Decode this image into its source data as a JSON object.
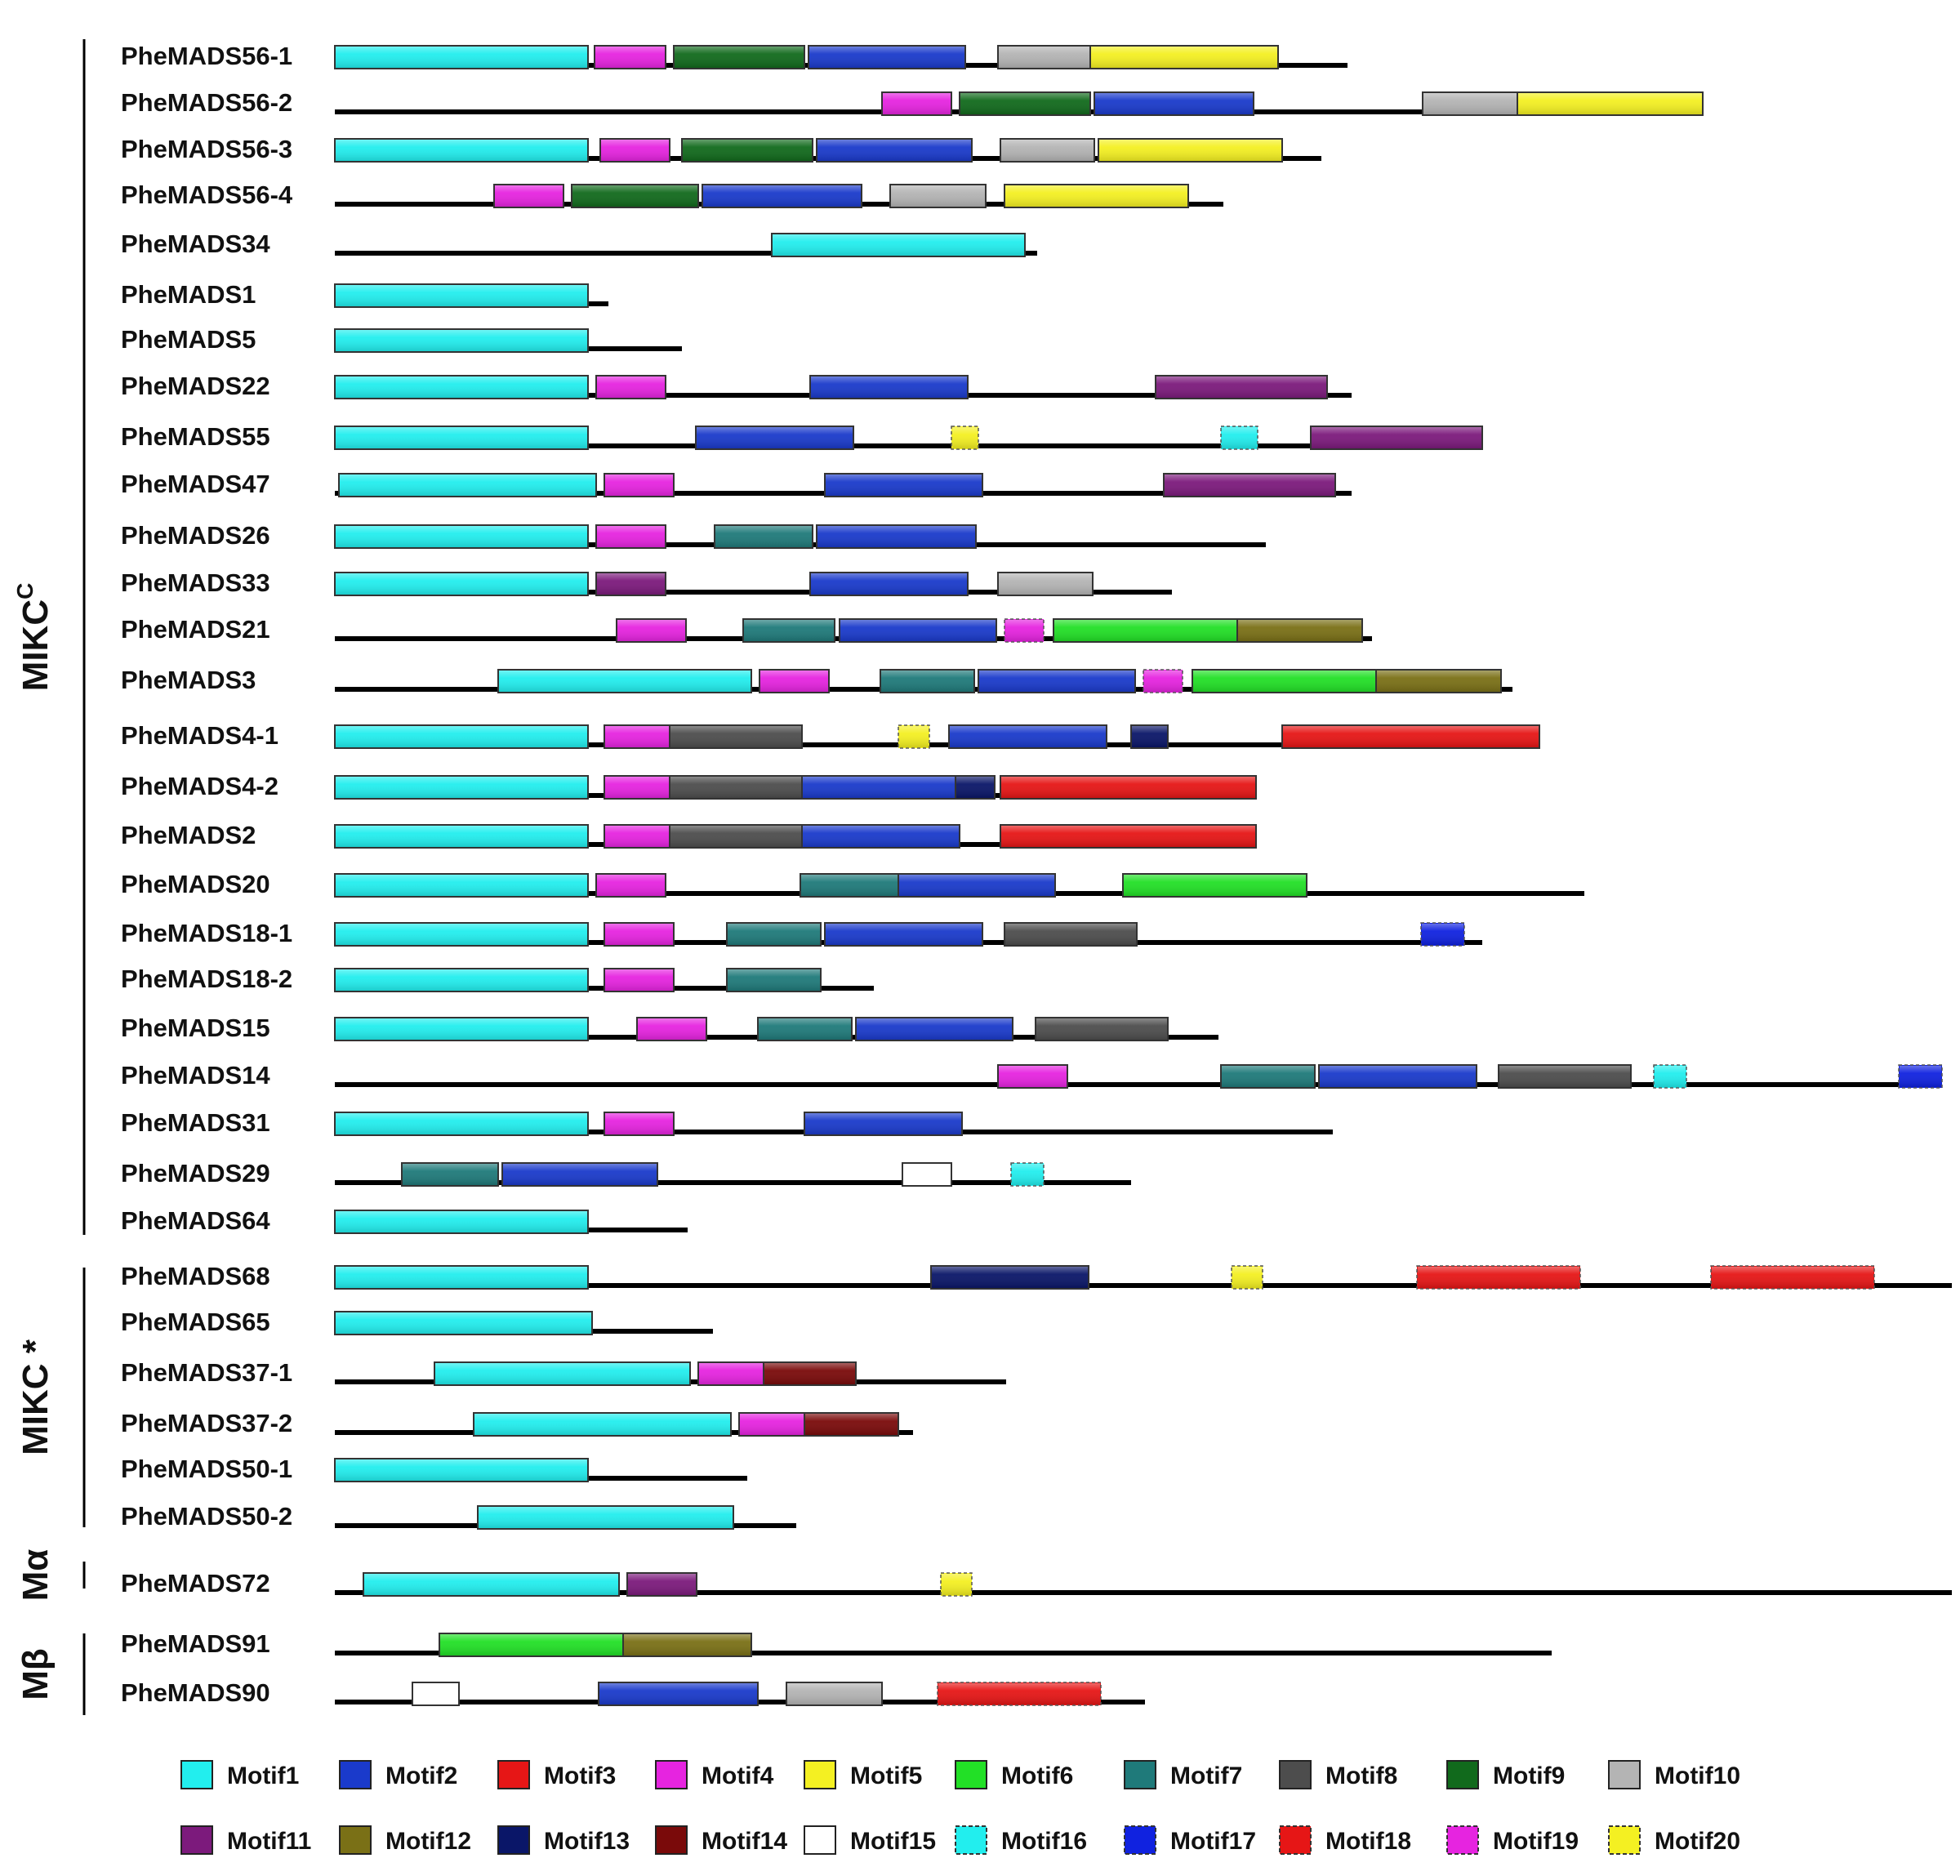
{
  "motif_colors": {
    "Motif1": "#22eeee",
    "Motif2": "#1a3acb",
    "Motif3": "#e61616",
    "Motif4": "#e624e0",
    "Motif5": "#f4f022",
    "Motif6": "#22e026",
    "Motif7": "#1f7a7a",
    "Motif8": "#4d4d4d",
    "Motif9": "#116a1c",
    "Motif10": "#b4b4b4",
    "Motif11": "#7c1a7c",
    "Motif12": "#7a7016",
    "Motif13": "#0a1668",
    "Motif14": "#7a0a0a",
    "Motif15": "#ffffff",
    "Motif16": "#22eeee",
    "Motif17": "#1022e0",
    "Motif18": "#e61616",
    "Motif19": "#e624e0",
    "Motif20": "#f4f022"
  },
  "dashed_motifs": [
    "Motif16",
    "Motif17",
    "Motif18",
    "Motif19",
    "Motif20"
  ],
  "groups": [
    {
      "label": "MIKC",
      "sup": "C",
      "first": 0,
      "last": 24
    },
    {
      "label": "MIKC *",
      "sup": "",
      "first": 25,
      "last": 30
    },
    {
      "label": "Mα",
      "sup": "",
      "first": 31,
      "last": 31
    },
    {
      "label": "Mβ",
      "sup": "",
      "first": 32,
      "last": 33
    }
  ],
  "genes": [
    {
      "name": "PheMADS56-1",
      "length": 1240,
      "motifs": [
        {
          "m": "Motif1",
          "s": 0,
          "e": 310
        },
        {
          "m": "Motif4",
          "s": 318,
          "e": 405
        },
        {
          "m": "Motif9",
          "s": 415,
          "e": 575
        },
        {
          "m": "Motif2",
          "s": 580,
          "e": 772
        },
        {
          "m": "Motif10",
          "s": 812,
          "e": 925
        },
        {
          "m": "Motif5",
          "s": 925,
          "e": 1155
        }
      ]
    },
    {
      "name": "PheMADS56-2",
      "length": 1675,
      "motifs": [
        {
          "m": "Motif4",
          "s": 670,
          "e": 755
        },
        {
          "m": "Motif9",
          "s": 765,
          "e": 925
        },
        {
          "m": "Motif2",
          "s": 930,
          "e": 1125
        },
        {
          "m": "Motif10",
          "s": 1332,
          "e": 1448
        },
        {
          "m": "Motif5",
          "s": 1448,
          "e": 1675
        }
      ]
    },
    {
      "name": "PheMADS56-3",
      "length": 1208,
      "motifs": [
        {
          "m": "Motif1",
          "s": 0,
          "e": 310
        },
        {
          "m": "Motif4",
          "s": 325,
          "e": 410
        },
        {
          "m": "Motif9",
          "s": 425,
          "e": 585
        },
        {
          "m": "Motif2",
          "s": 590,
          "e": 780
        },
        {
          "m": "Motif10",
          "s": 815,
          "e": 930
        },
        {
          "m": "Motif5",
          "s": 935,
          "e": 1160
        }
      ]
    },
    {
      "name": "PheMADS56-4",
      "length": 1088,
      "motifs": [
        {
          "m": "Motif4",
          "s": 195,
          "e": 280
        },
        {
          "m": "Motif9",
          "s": 290,
          "e": 445
        },
        {
          "m": "Motif2",
          "s": 450,
          "e": 645
        },
        {
          "m": "Motif10",
          "s": 680,
          "e": 797
        },
        {
          "m": "Motif5",
          "s": 820,
          "e": 1045
        }
      ]
    },
    {
      "name": "PheMADS34",
      "length": 860,
      "motifs": [
        {
          "m": "Motif1",
          "s": 535,
          "e": 845
        }
      ]
    },
    {
      "name": "PheMADS1",
      "length": 335,
      "motifs": [
        {
          "m": "Motif1",
          "s": 0,
          "e": 310
        }
      ]
    },
    {
      "name": "PheMADS5",
      "length": 425,
      "motifs": [
        {
          "m": "Motif1",
          "s": 0,
          "e": 310
        }
      ]
    },
    {
      "name": "PheMADS22",
      "length": 1245,
      "motifs": [
        {
          "m": "Motif1",
          "s": 0,
          "e": 310
        },
        {
          "m": "Motif4",
          "s": 320,
          "e": 405
        },
        {
          "m": "Motif2",
          "s": 582,
          "e": 775
        },
        {
          "m": "Motif11",
          "s": 1005,
          "e": 1215
        }
      ]
    },
    {
      "name": "PheMADS55",
      "length": 1400,
      "motifs": [
        {
          "m": "Motif1",
          "s": 0,
          "e": 310
        },
        {
          "m": "Motif2",
          "s": 442,
          "e": 635
        },
        {
          "m": "Motif20",
          "s": 755,
          "e": 788
        },
        {
          "m": "Motif16",
          "s": 1085,
          "e": 1130
        },
        {
          "m": "Motif11",
          "s": 1195,
          "e": 1405
        }
      ]
    },
    {
      "name": "PheMADS47",
      "length": 1245,
      "motifs": [
        {
          "m": "Motif1",
          "s": 5,
          "e": 320
        },
        {
          "m": "Motif4",
          "s": 330,
          "e": 415
        },
        {
          "m": "Motif2",
          "s": 600,
          "e": 793
        },
        {
          "m": "Motif11",
          "s": 1015,
          "e": 1225
        }
      ]
    },
    {
      "name": "PheMADS26",
      "length": 1140,
      "motifs": [
        {
          "m": "Motif1",
          "s": 0,
          "e": 310
        },
        {
          "m": "Motif4",
          "s": 320,
          "e": 405
        },
        {
          "m": "Motif7",
          "s": 465,
          "e": 585
        },
        {
          "m": "Motif2",
          "s": 590,
          "e": 785
        }
      ]
    },
    {
      "name": "PheMADS33",
      "length": 1025,
      "motifs": [
        {
          "m": "Motif1",
          "s": 0,
          "e": 310
        },
        {
          "m": "Motif11",
          "s": 320,
          "e": 405
        },
        {
          "m": "Motif2",
          "s": 582,
          "e": 775
        },
        {
          "m": "Motif10",
          "s": 812,
          "e": 928
        }
      ]
    },
    {
      "name": "PheMADS21",
      "length": 1270,
      "motifs": [
        {
          "m": "Motif4",
          "s": 345,
          "e": 430
        },
        {
          "m": "Motif7",
          "s": 500,
          "e": 612
        },
        {
          "m": "Motif2",
          "s": 618,
          "e": 810
        },
        {
          "m": "Motif19",
          "s": 820,
          "e": 868
        },
        {
          "m": "Motif6",
          "s": 880,
          "e": 1105
        },
        {
          "m": "Motif12",
          "s": 1105,
          "e": 1258
        }
      ]
    },
    {
      "name": "PheMADS3",
      "length": 1442,
      "motifs": [
        {
          "m": "Motif1",
          "s": 200,
          "e": 510
        },
        {
          "m": "Motif4",
          "s": 520,
          "e": 605
        },
        {
          "m": "Motif7",
          "s": 668,
          "e": 783
        },
        {
          "m": "Motif2",
          "s": 788,
          "e": 980
        },
        {
          "m": "Motif19",
          "s": 990,
          "e": 1038
        },
        {
          "m": "Motif6",
          "s": 1050,
          "e": 1275
        },
        {
          "m": "Motif12",
          "s": 1275,
          "e": 1428
        }
      ]
    },
    {
      "name": "PheMADS4-1",
      "length": 1475,
      "motifs": [
        {
          "m": "Motif1",
          "s": 0,
          "e": 310
        },
        {
          "m": "Motif4",
          "s": 330,
          "e": 410
        },
        {
          "m": "Motif8",
          "s": 410,
          "e": 572
        },
        {
          "m": "Motif20",
          "s": 690,
          "e": 728
        },
        {
          "m": "Motif2",
          "s": 752,
          "e": 945
        },
        {
          "m": "Motif13",
          "s": 975,
          "e": 1020
        },
        {
          "m": "Motif3",
          "s": 1160,
          "e": 1475
        }
      ]
    },
    {
      "name": "PheMADS4-2",
      "length": 1128,
      "motifs": [
        {
          "m": "Motif1",
          "s": 0,
          "e": 310
        },
        {
          "m": "Motif4",
          "s": 330,
          "e": 410
        },
        {
          "m": "Motif8",
          "s": 410,
          "e": 572
        },
        {
          "m": "Motif2",
          "s": 572,
          "e": 760
        },
        {
          "m": "Motif13",
          "s": 760,
          "e": 808
        },
        {
          "m": "Motif3",
          "s": 815,
          "e": 1128
        }
      ]
    },
    {
      "name": "PheMADS2",
      "length": 1128,
      "motifs": [
        {
          "m": "Motif1",
          "s": 0,
          "e": 310
        },
        {
          "m": "Motif4",
          "s": 330,
          "e": 410
        },
        {
          "m": "Motif8",
          "s": 410,
          "e": 572
        },
        {
          "m": "Motif2",
          "s": 572,
          "e": 765
        },
        {
          "m": "Motif3",
          "s": 815,
          "e": 1128
        }
      ]
    },
    {
      "name": "PheMADS20",
      "length": 1530,
      "motifs": [
        {
          "m": "Motif1",
          "s": 0,
          "e": 310
        },
        {
          "m": "Motif4",
          "s": 320,
          "e": 405
        },
        {
          "m": "Motif7",
          "s": 570,
          "e": 690
        },
        {
          "m": "Motif2",
          "s": 690,
          "e": 882
        },
        {
          "m": "Motif6",
          "s": 965,
          "e": 1190
        }
      ]
    },
    {
      "name": "PheMADS18-1",
      "length": 1405,
      "motifs": [
        {
          "m": "Motif1",
          "s": 0,
          "e": 310
        },
        {
          "m": "Motif4",
          "s": 330,
          "e": 415
        },
        {
          "m": "Motif7",
          "s": 480,
          "e": 595
        },
        {
          "m": "Motif2",
          "s": 600,
          "e": 793
        },
        {
          "m": "Motif8",
          "s": 820,
          "e": 982
        },
        {
          "m": "Motif17",
          "s": 1330,
          "e": 1383
        }
      ]
    },
    {
      "name": "PheMADS18-2",
      "length": 660,
      "motifs": [
        {
          "m": "Motif1",
          "s": 0,
          "e": 310
        },
        {
          "m": "Motif4",
          "s": 330,
          "e": 415
        },
        {
          "m": "Motif7",
          "s": 480,
          "e": 595
        }
      ]
    },
    {
      "name": "PheMADS15",
      "length": 1082,
      "motifs": [
        {
          "m": "Motif1",
          "s": 0,
          "e": 310
        },
        {
          "m": "Motif4",
          "s": 370,
          "e": 455
        },
        {
          "m": "Motif7",
          "s": 518,
          "e": 633
        },
        {
          "m": "Motif2",
          "s": 638,
          "e": 830
        },
        {
          "m": "Motif8",
          "s": 858,
          "e": 1020
        }
      ]
    },
    {
      "name": "PheMADS14",
      "length": 1945,
      "motifs": [
        {
          "m": "Motif4",
          "s": 812,
          "e": 897
        },
        {
          "m": "Motif7",
          "s": 1085,
          "e": 1200
        },
        {
          "m": "Motif2",
          "s": 1205,
          "e": 1398
        },
        {
          "m": "Motif8",
          "s": 1425,
          "e": 1587
        },
        {
          "m": "Motif16",
          "s": 1615,
          "e": 1655
        },
        {
          "m": "Motif17",
          "s": 1915,
          "e": 1968
        }
      ]
    },
    {
      "name": "PheMADS31",
      "length": 1222,
      "motifs": [
        {
          "m": "Motif1",
          "s": 0,
          "e": 310
        },
        {
          "m": "Motif4",
          "s": 330,
          "e": 415
        },
        {
          "m": "Motif2",
          "s": 575,
          "e": 768
        }
      ]
    },
    {
      "name": "PheMADS29",
      "length": 975,
      "motifs": [
        {
          "m": "Motif7",
          "s": 82,
          "e": 200
        },
        {
          "m": "Motif2",
          "s": 205,
          "e": 395
        },
        {
          "m": "Motif15",
          "s": 695,
          "e": 755
        },
        {
          "m": "Motif16",
          "s": 828,
          "e": 868
        }
      ]
    },
    {
      "name": "PheMADS64",
      "length": 432,
      "motifs": [
        {
          "m": "Motif1",
          "s": 0,
          "e": 310
        }
      ]
    },
    {
      "name": "PheMADS68",
      "length": 1980,
      "motifs": [
        {
          "m": "Motif1",
          "s": 0,
          "e": 310
        },
        {
          "m": "Motif13",
          "s": 730,
          "e": 923
        },
        {
          "m": "Motif20",
          "s": 1098,
          "e": 1136
        },
        {
          "m": "Motif18",
          "s": 1325,
          "e": 1525
        },
        {
          "m": "Motif18",
          "s": 1685,
          "e": 1885
        }
      ]
    },
    {
      "name": "PheMADS65",
      "length": 463,
      "motifs": [
        {
          "m": "Motif1",
          "s": 0,
          "e": 315
        }
      ]
    },
    {
      "name": "PheMADS37-1",
      "length": 822,
      "motifs": [
        {
          "m": "Motif1",
          "s": 122,
          "e": 435
        },
        {
          "m": "Motif4",
          "s": 445,
          "e": 525
        },
        {
          "m": "Motif14",
          "s": 525,
          "e": 638
        }
      ]
    },
    {
      "name": "PheMADS37-2",
      "length": 708,
      "motifs": [
        {
          "m": "Motif1",
          "s": 170,
          "e": 485
        },
        {
          "m": "Motif4",
          "s": 495,
          "e": 575
        },
        {
          "m": "Motif14",
          "s": 575,
          "e": 690
        }
      ]
    },
    {
      "name": "PheMADS50-1",
      "length": 505,
      "motifs": [
        {
          "m": "Motif1",
          "s": 0,
          "e": 310
        }
      ]
    },
    {
      "name": "PheMADS50-2",
      "length": 565,
      "motifs": [
        {
          "m": "Motif1",
          "s": 175,
          "e": 488
        }
      ]
    },
    {
      "name": "PheMADS72",
      "length": 1980,
      "motifs": [
        {
          "m": "Motif1",
          "s": 35,
          "e": 348
        },
        {
          "m": "Motif11",
          "s": 358,
          "e": 443
        },
        {
          "m": "Motif20",
          "s": 742,
          "e": 780
        }
      ]
    },
    {
      "name": "PheMADS91",
      "length": 1490,
      "motifs": [
        {
          "m": "Motif6",
          "s": 128,
          "e": 353
        },
        {
          "m": "Motif12",
          "s": 353,
          "e": 510
        }
      ]
    },
    {
      "name": "PheMADS90",
      "length": 992,
      "motifs": [
        {
          "m": "Motif15",
          "s": 95,
          "e": 152
        },
        {
          "m": "Motif2",
          "s": 323,
          "e": 518
        },
        {
          "m": "Motif10",
          "s": 553,
          "e": 670
        },
        {
          "m": "Motif18",
          "s": 738,
          "e": 938
        }
      ]
    }
  ],
  "legend": [
    "Motif1",
    "Motif2",
    "Motif3",
    "Motif4",
    "Motif5",
    "Motif6",
    "Motif7",
    "Motif8",
    "Motif9",
    "Motif10",
    "Motif11",
    "Motif12",
    "Motif13",
    "Motif14",
    "Motif15",
    "Motif16",
    "Motif17",
    "Motif18",
    "Motif19",
    "Motif20"
  ]
}
